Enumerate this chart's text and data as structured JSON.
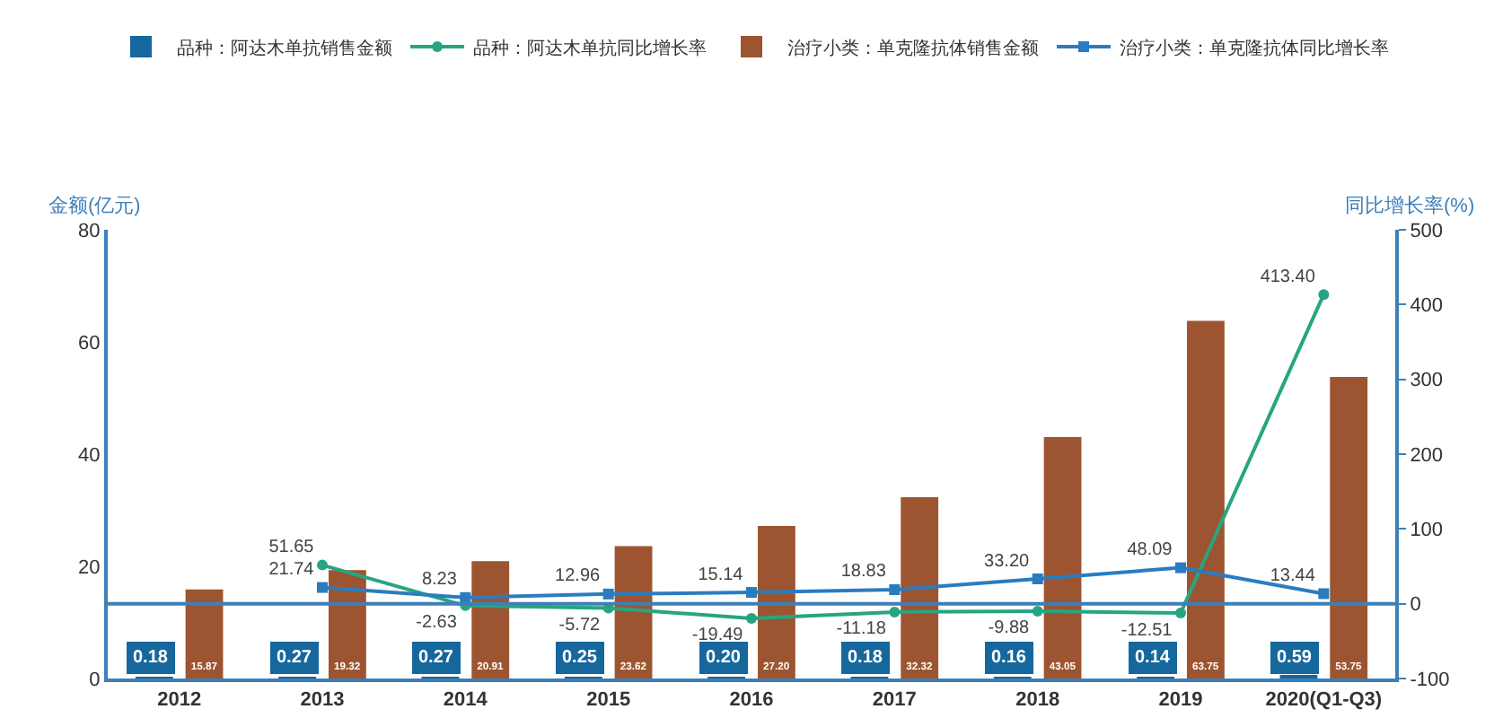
{
  "chart_data": {
    "type": "bar",
    "categories": [
      "2012",
      "2013",
      "2014",
      "2015",
      "2016",
      "2017",
      "2018",
      "2019",
      "2020(Q1-Q3)"
    ],
    "series": [
      {
        "name": "品种：阿达木单抗销售金额",
        "color": "#16679c",
        "values": [
          0.18,
          0.27,
          0.27,
          0.25,
          0.2,
          0.18,
          0.16,
          0.14,
          0.59
        ],
        "value_labels": [
          "0.18",
          "0.27",
          "0.27",
          "0.25",
          "0.20",
          "0.18",
          "0.16",
          "0.14",
          "0.59"
        ]
      },
      {
        "name": "品种：阿达木单抗同比增长率",
        "type": "line",
        "axis": "y2",
        "marker": "circle",
        "color": "#27a583",
        "values": [
          null,
          51.65,
          -2.63,
          -5.72,
          -19.49,
          -11.18,
          -9.88,
          -12.51,
          413.4
        ],
        "value_labels": [
          null,
          "51.65",
          "-2.63",
          "-5.72",
          "-19.49",
          "-11.18",
          "-9.88",
          "-12.51",
          "413.40"
        ]
      },
      {
        "name": "治疗小类：单克隆抗体销售金额",
        "color": "#9c5530",
        "values": [
          15.87,
          19.32,
          20.91,
          23.62,
          27.2,
          32.32,
          43.05,
          63.75,
          53.75
        ],
        "value_labels": [
          "15.87",
          "19.32",
          "20.91",
          "23.62",
          "27.20",
          "32.32",
          "43.05",
          "63.75",
          "53.75"
        ]
      },
      {
        "name": "治疗小类：单克隆抗体同比增长率",
        "type": "line",
        "axis": "y2",
        "marker": "square",
        "color": "#2a7cc0",
        "values": [
          null,
          21.74,
          8.23,
          12.96,
          15.14,
          18.83,
          33.2,
          48.09,
          13.44
        ],
        "value_labels": [
          null,
          "21.74",
          "8.23",
          "12.96",
          "15.14",
          "18.83",
          "33.20",
          "48.09",
          "13.44"
        ]
      }
    ],
    "ylabel": "金额(亿元)",
    "y2label": "同比增长率(%)",
    "ylim": [
      0,
      80
    ],
    "yticks": [
      0,
      20,
      40,
      60,
      80
    ],
    "y2lim": [
      -100,
      500
    ],
    "y2ticks": [
      -100,
      0,
      100,
      200,
      300,
      400,
      500
    ],
    "ref_lines": [
      {
        "axis": "y2",
        "value": 0,
        "color": "#3d7fb8"
      }
    ],
    "legend": "top"
  }
}
